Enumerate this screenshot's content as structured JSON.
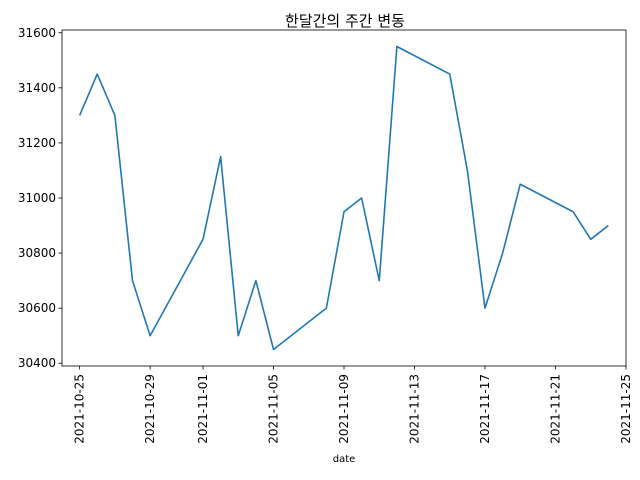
{
  "chart_data": {
    "type": "line",
    "title": "한달간의 주간 변동",
    "xlabel": "date",
    "ylabel": "",
    "x_ticks": [
      "2021-10-25",
      "2021-10-29",
      "2021-11-01",
      "2021-11-05",
      "2021-11-09",
      "2021-11-13",
      "2021-11-17",
      "2021-11-21",
      "2021-11-25"
    ],
    "y_ticks": [
      "30400",
      "30600",
      "30800",
      "31000",
      "31200",
      "31400",
      "31600"
    ],
    "xlim": [
      "2021-10-24",
      "2021-11-25"
    ],
    "ylim": [
      30390,
      31610
    ],
    "grid": false,
    "line_color": "#1f77b4",
    "series": [
      {
        "x": [
          "2021-10-25",
          "2021-10-26",
          "2021-10-27",
          "2021-10-28",
          "2021-10-29",
          "2021-11-01",
          "2021-11-02",
          "2021-11-03",
          "2021-11-04",
          "2021-11-05",
          "2021-11-08",
          "2021-11-09",
          "2021-11-10",
          "2021-11-11",
          "2021-11-12",
          "2021-11-15",
          "2021-11-16",
          "2021-11-17",
          "2021-11-18",
          "2021-11-19",
          "2021-11-22",
          "2021-11-23",
          "2021-11-24"
        ],
        "values": [
          31300,
          31450,
          31300,
          30700,
          30500,
          30850,
          31150,
          30500,
          30700,
          30450,
          30600,
          30950,
          31000,
          30700,
          31550,
          31450,
          31100,
          30600,
          30800,
          31050,
          30950,
          30850,
          30900
        ]
      }
    ]
  }
}
